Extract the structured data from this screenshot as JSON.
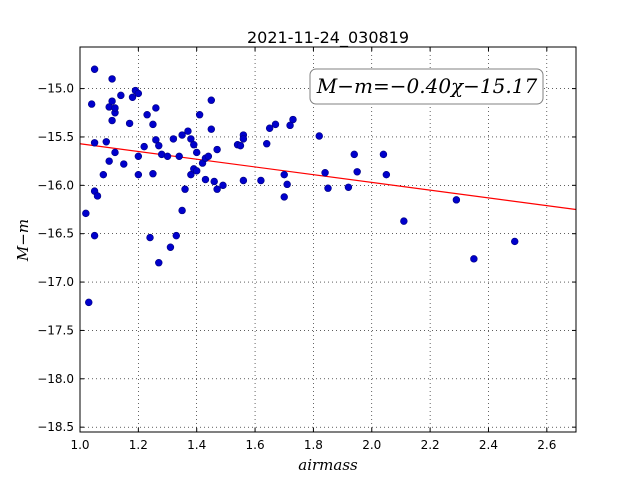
{
  "chart_data": {
    "type": "scatter",
    "title": "2021-11-24_030819",
    "xlabel": "airmass",
    "ylabel": "M−m",
    "xlim": [
      1.0,
      2.7
    ],
    "ylim": [
      -18.55,
      -14.57
    ],
    "y_inverted": false,
    "grid": true,
    "x_ticks": [
      1.0,
      1.2,
      1.4,
      1.6,
      1.8,
      2.0,
      2.2,
      2.4,
      2.6
    ],
    "x_tick_labels": [
      "1.0",
      "1.2",
      "1.4",
      "1.6",
      "1.8",
      "2.0",
      "2.2",
      "2.4",
      "2.6"
    ],
    "y_ticks": [
      -15.0,
      -15.5,
      -16.0,
      -16.5,
      -17.0,
      -17.5,
      -18.0,
      -18.5
    ],
    "y_tick_labels": [
      "−15.0",
      "−15.5",
      "−16.0",
      "−16.5",
      "−17.0",
      "−17.5",
      "−18.0",
      "−18.5"
    ],
    "annotation": "M−m=−0.40χ−15.17",
    "fit_line": {
      "slope": -0.4,
      "intercept": -15.17,
      "x_range": [
        1.0,
        2.7
      ],
      "color": "#ff0000"
    },
    "point_color": "#0000cc",
    "points": [
      [
        1.02,
        -16.29
      ],
      [
        1.03,
        -17.21
      ],
      [
        1.04,
        -15.16
      ],
      [
        1.05,
        -14.8
      ],
      [
        1.05,
        -15.56
      ],
      [
        1.05,
        -16.06
      ],
      [
        1.05,
        -16.52
      ],
      [
        1.06,
        -16.11
      ],
      [
        1.08,
        -15.89
      ],
      [
        1.09,
        -15.55
      ],
      [
        1.1,
        -15.75
      ],
      [
        1.1,
        -15.19
      ],
      [
        1.11,
        -15.13
      ],
      [
        1.11,
        -15.33
      ],
      [
        1.11,
        -14.9
      ],
      [
        1.12,
        -15.25
      ],
      [
        1.12,
        -15.66
      ],
      [
        1.12,
        -15.2
      ],
      [
        1.14,
        -15.07
      ],
      [
        1.15,
        -15.78
      ],
      [
        1.17,
        -15.36
      ],
      [
        1.18,
        -15.09
      ],
      [
        1.19,
        -15.02
      ],
      [
        1.2,
        -15.7
      ],
      [
        1.2,
        -15.05
      ],
      [
        1.2,
        -15.89
      ],
      [
        1.22,
        -15.6
      ],
      [
        1.23,
        -15.27
      ],
      [
        1.24,
        -16.54
      ],
      [
        1.25,
        -15.37
      ],
      [
        1.25,
        -15.88
      ],
      [
        1.26,
        -15.53
      ],
      [
        1.26,
        -15.2
      ],
      [
        1.27,
        -15.59
      ],
      [
        1.27,
        -16.8
      ],
      [
        1.28,
        -15.68
      ],
      [
        1.3,
        -15.7
      ],
      [
        1.31,
        -16.64
      ],
      [
        1.32,
        -15.52
      ],
      [
        1.33,
        -16.52
      ],
      [
        1.34,
        -15.7
      ],
      [
        1.35,
        -15.48
      ],
      [
        1.35,
        -16.26
      ],
      [
        1.36,
        -16.04
      ],
      [
        1.37,
        -15.44
      ],
      [
        1.38,
        -15.52
      ],
      [
        1.38,
        -15.89
      ],
      [
        1.39,
        -15.58
      ],
      [
        1.39,
        -15.83
      ],
      [
        1.4,
        -15.66
      ],
      [
        1.4,
        -15.85
      ],
      [
        1.41,
        -15.27
      ],
      [
        1.42,
        -15.77
      ],
      [
        1.43,
        -15.72
      ],
      [
        1.43,
        -15.94
      ],
      [
        1.44,
        -15.7
      ],
      [
        1.45,
        -15.12
      ],
      [
        1.45,
        -15.42
      ],
      [
        1.46,
        -15.96
      ],
      [
        1.47,
        -15.63
      ],
      [
        1.47,
        -16.04
      ],
      [
        1.49,
        -16.0
      ],
      [
        1.54,
        -15.58
      ],
      [
        1.55,
        -15.59
      ],
      [
        1.56,
        -15.48
      ],
      [
        1.56,
        -15.52
      ],
      [
        1.56,
        -15.95
      ],
      [
        1.62,
        -15.95
      ],
      [
        1.64,
        -15.57
      ],
      [
        1.65,
        -15.41
      ],
      [
        1.67,
        -15.37
      ],
      [
        1.7,
        -16.12
      ],
      [
        1.7,
        -15.89
      ],
      [
        1.71,
        -15.99
      ],
      [
        1.72,
        -15.38
      ],
      [
        1.73,
        -15.32
      ],
      [
        1.82,
        -15.49
      ],
      [
        1.84,
        -15.87
      ],
      [
        1.85,
        -16.03
      ],
      [
        1.92,
        -16.02
      ],
      [
        1.94,
        -15.68
      ],
      [
        1.95,
        -15.86
      ],
      [
        2.04,
        -15.68
      ],
      [
        2.05,
        -15.89
      ],
      [
        2.11,
        -16.37
      ],
      [
        2.29,
        -16.15
      ],
      [
        2.35,
        -16.76
      ],
      [
        2.49,
        -16.58
      ]
    ]
  }
}
